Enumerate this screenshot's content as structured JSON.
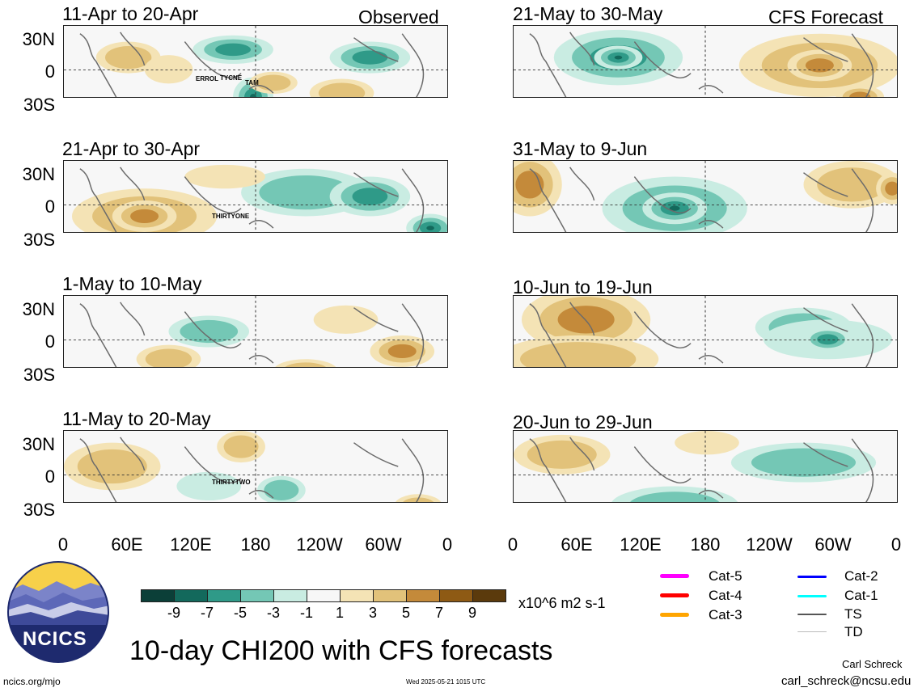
{
  "header": {
    "observed_label": "Observed",
    "forecast_label": "CFS Forecast"
  },
  "panels_left": [
    {
      "period": "11-Apr to 20-Apr",
      "storms": [
        "ERROL",
        "TYCNE",
        "TAM"
      ]
    },
    {
      "period": "21-Apr to 30-Apr",
      "storms": [
        "THIRTYONE"
      ]
    },
    {
      "period": "1-May to 10-May",
      "storms": []
    },
    {
      "period": "11-May to 20-May",
      "storms": [
        "THIRTYTWO"
      ]
    }
  ],
  "panels_right": [
    {
      "period": "21-May to 30-May"
    },
    {
      "period": "31-May to 9-Jun"
    },
    {
      "period": "10-Jun to 19-Jun"
    },
    {
      "period": "20-Jun to 29-Jun"
    }
  ],
  "axes": {
    "y_ticks": [
      "30N",
      "0",
      "30S"
    ],
    "x_ticks": [
      "0",
      "60E",
      "120E",
      "180",
      "120W",
      "60W",
      "0"
    ]
  },
  "colorbar": {
    "labels": [
      "-9",
      "-7",
      "-5",
      "-3",
      "-1",
      "1",
      "3",
      "5",
      "7",
      "9"
    ],
    "units": "x10^6 m2 s-1",
    "colors": [
      "#0b3f38",
      "#13695c",
      "#2f9a88",
      "#74c7b5",
      "#c9ece2",
      "#f7f7f7",
      "#f4e3b5",
      "#e2c27a",
      "#c48a3a",
      "#8e5a14",
      "#5b3a0c"
    ]
  },
  "legend": {
    "items": [
      {
        "label": "Cat-5",
        "color": "#ff00ff"
      },
      {
        "label": "Cat-4",
        "color": "#ff0000"
      },
      {
        "label": "Cat-3",
        "color": "#ffa500"
      },
      {
        "label": "Cat-2",
        "color": "#0000ff"
      },
      {
        "label": "Cat-1",
        "color": "#00ffff"
      },
      {
        "label": "TS",
        "color": "#555555"
      },
      {
        "label": "TD",
        "color": "#bbbbbb"
      }
    ]
  },
  "footer": {
    "logo_text": "NCICS",
    "main_title": "10-day CHI200 with CFS forecasts",
    "author": "Carl Schreck",
    "email": "carl_schreck@ncsu.edu",
    "url": "ncics.org/mjo",
    "timestamp": "Wed 2025-05-21 1015 UTC"
  },
  "chart_data": {
    "type": "heatmap",
    "title": "10-day CHI200 with CFS forecasts",
    "units": "x10^6 m2 s-1",
    "x_ticks": [
      "0",
      "60E",
      "120E",
      "180",
      "120W",
      "60W",
      "0"
    ],
    "y_ticks": [
      "30N",
      "0",
      "30S"
    ],
    "levels": [
      -9,
      -7,
      -5,
      -3,
      -1,
      1,
      3,
      5,
      7,
      9
    ],
    "periods": [
      "11-Apr to 20-Apr",
      "21-Apr to 30-Apr",
      "1-May to 10-May",
      "11-May to 20-May",
      "21-May to 30-May",
      "31-May to 9-Jun",
      "10-Jun to 19-Jun",
      "20-Jun to 29-Jun"
    ]
  }
}
